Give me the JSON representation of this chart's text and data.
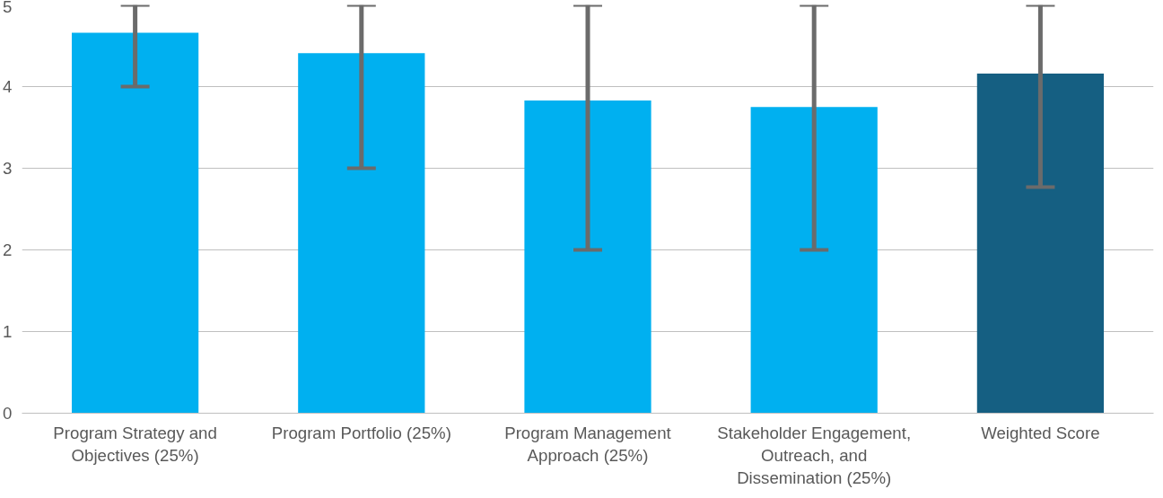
{
  "chart_data": {
    "type": "bar",
    "categories": [
      "Program Strategy and Objectives (25%)",
      "Program Portfolio (25%)",
      "Program Management Approach (25%)",
      "Stakeholder Engagement, Outreach, and Dissemination (25%)",
      "Weighted Score"
    ],
    "values": [
      4.66,
      4.41,
      3.83,
      3.75,
      4.16
    ],
    "colors": [
      "#00b0f0",
      "#00b0f0",
      "#00b0f0",
      "#00b0f0",
      "#155f82"
    ],
    "errors": [
      [
        4,
        5
      ],
      [
        3,
        5
      ],
      [
        2,
        5
      ],
      [
        2,
        5
      ],
      [
        2.77,
        5
      ]
    ],
    "ylim": [
      0,
      5
    ],
    "yticks": [
      0,
      1,
      2,
      3,
      4,
      5
    ],
    "grid": "y"
  }
}
